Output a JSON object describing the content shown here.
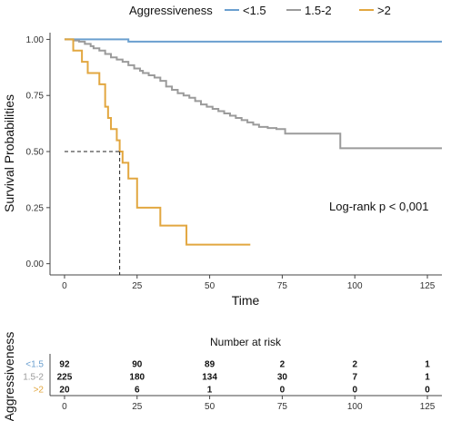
{
  "chart_data": [
    {
      "type": "line",
      "subtype": "kaplan-meier",
      "title": "",
      "xlabel": "Time",
      "ylabel": "Survival Probabilities",
      "xlim": [
        -5,
        130
      ],
      "ylim": [
        -0.05,
        1.03
      ],
      "x_ticks": [
        0,
        25,
        50,
        75,
        100,
        125
      ],
      "y_ticks": [
        "0.00",
        "0.25",
        "0.50",
        "0.75",
        "1.00"
      ],
      "grid": false,
      "legend": {
        "title": "Aggressiveness",
        "placement": "top"
      },
      "annotation": "Log-rank p < 0,001",
      "median_marker": {
        "x": 19,
        "y": 0.5
      },
      "series": [
        {
          "name": "<1.5",
          "color": "#6a9fcf",
          "steps": [
            [
              0,
              1.0
            ],
            [
              18,
              1.0
            ],
            [
              22,
              0.99
            ],
            [
              130,
              0.99
            ]
          ]
        },
        {
          "name": "1.5-2",
          "color": "#9b9b9b",
          "steps": [
            [
              0,
              1.0
            ],
            [
              3,
              0.995
            ],
            [
              5,
              0.99
            ],
            [
              7,
              0.98
            ],
            [
              9,
              0.97
            ],
            [
              10,
              0.96
            ],
            [
              12,
              0.95
            ],
            [
              14,
              0.935
            ],
            [
              16,
              0.92
            ],
            [
              18,
              0.91
            ],
            [
              20,
              0.9
            ],
            [
              22,
              0.885
            ],
            [
              24,
              0.87
            ],
            [
              26,
              0.86
            ],
            [
              27,
              0.85
            ],
            [
              29,
              0.84
            ],
            [
              31,
              0.83
            ],
            [
              33,
              0.815
            ],
            [
              35,
              0.79
            ],
            [
              37,
              0.775
            ],
            [
              39,
              0.76
            ],
            [
              41,
              0.75
            ],
            [
              43,
              0.74
            ],
            [
              45,
              0.725
            ],
            [
              47,
              0.71
            ],
            [
              49,
              0.7
            ],
            [
              51,
              0.69
            ],
            [
              53,
              0.68
            ],
            [
              55,
              0.67
            ],
            [
              57,
              0.66
            ],
            [
              59,
              0.65
            ],
            [
              61,
              0.64
            ],
            [
              63,
              0.63
            ],
            [
              65,
              0.62
            ],
            [
              67,
              0.61
            ],
            [
              70,
              0.605
            ],
            [
              73,
              0.6
            ],
            [
              76,
              0.58
            ],
            [
              95,
              0.515
            ],
            [
              130,
              0.515
            ]
          ]
        },
        {
          "name": ">2",
          "color": "#e2a740",
          "steps": [
            [
              0,
              1.0
            ],
            [
              3,
              0.95
            ],
            [
              6,
              0.9
            ],
            [
              8,
              0.85
            ],
            [
              12,
              0.8
            ],
            [
              14,
              0.7
            ],
            [
              15,
              0.65
            ],
            [
              16,
              0.6
            ],
            [
              18,
              0.55
            ],
            [
              19,
              0.5
            ],
            [
              20,
              0.45
            ],
            [
              22,
              0.38
            ],
            [
              25,
              0.25
            ],
            [
              33,
              0.17
            ],
            [
              42,
              0.085
            ],
            [
              64,
              0.085
            ]
          ]
        }
      ]
    },
    {
      "type": "table",
      "title": "Number at risk",
      "ylabel": "Aggressiveness",
      "x": [
        0,
        25,
        50,
        75,
        100,
        125
      ],
      "x_ticks": [
        "0",
        "25",
        "50",
        "75",
        "100",
        "125"
      ],
      "rows": [
        {
          "name": "<1.5",
          "color": "#6a9fcf",
          "values": [
            92,
            90,
            89,
            2,
            2,
            1
          ]
        },
        {
          "name": "1.5-2",
          "color": "#9b9b9b",
          "values": [
            225,
            180,
            134,
            30,
            7,
            1
          ]
        },
        {
          "name": ">2",
          "color": "#e2a740",
          "values": [
            20,
            6,
            1,
            0,
            0,
            0
          ]
        }
      ]
    }
  ]
}
